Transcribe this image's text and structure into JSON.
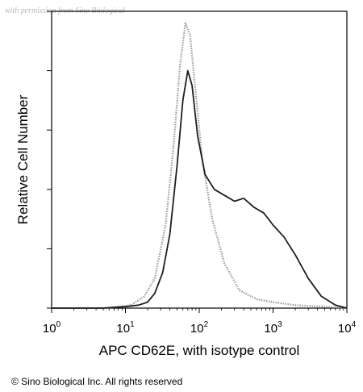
{
  "watermark": "with permission from Sino Biological",
  "copyright": "© Sino Biological Inc. All rights reserved",
  "chart_data": {
    "type": "area",
    "title": "",
    "xlabel": "APC CD62E, with isotype control",
    "ylabel": "Relative Cell Number",
    "x_scale": "log",
    "xlim": [
      1,
      10000
    ],
    "ylim": [
      0,
      100
    ],
    "x_ticks": [
      {
        "value": 1,
        "base": "10",
        "exp": "0"
      },
      {
        "value": 10,
        "base": "10",
        "exp": "1"
      },
      {
        "value": 100,
        "base": "10",
        "exp": "2"
      },
      {
        "value": 1000,
        "base": "10",
        "exp": "3"
      },
      {
        "value": 10000,
        "base": "10",
        "exp": "4"
      }
    ],
    "y_ticks": [
      0,
      20,
      40,
      60,
      80,
      100
    ],
    "grid": false,
    "series": [
      {
        "role": "isotype control",
        "color": "#9a9a9a",
        "style": "dotted",
        "x": [
          1,
          5,
          8,
          12,
          18,
          25,
          35,
          45,
          55,
          65,
          75,
          90,
          110,
          150,
          220,
          350,
          600,
          1000,
          2000,
          5000,
          10000
        ],
        "values": [
          0,
          0,
          0.5,
          1,
          4,
          10,
          28,
          55,
          82,
          96,
          92,
          72,
          50,
          30,
          15,
          6,
          3,
          2,
          1,
          0.5,
          0
        ]
      },
      {
        "role": "CD62E",
        "color": "#1e1e1e",
        "style": "solid",
        "x": [
          1,
          5,
          10,
          15,
          20,
          25,
          32,
          40,
          50,
          60,
          70,
          80,
          95,
          120,
          160,
          220,
          300,
          400,
          550,
          750,
          1000,
          1400,
          2000,
          3000,
          4500,
          7000,
          10000
        ],
        "values": [
          0,
          0,
          0.5,
          1,
          2,
          5,
          12,
          25,
          48,
          70,
          80,
          75,
          58,
          45,
          40,
          38,
          36,
          37,
          34,
          32,
          28,
          24,
          18,
          10,
          4,
          1,
          0
        ]
      }
    ]
  }
}
